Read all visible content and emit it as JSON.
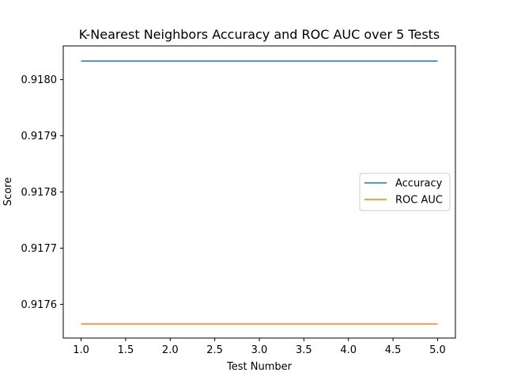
{
  "chart_data": {
    "type": "line",
    "title": "K-Nearest Neighbors Accuracy and ROC AUC over 5 Tests",
    "xlabel": "Test Number",
    "ylabel": "Score",
    "x": [
      1,
      2,
      3,
      4,
      5
    ],
    "xlim": [
      0.8,
      5.2
    ],
    "ylim": [
      0.91754,
      0.91806
    ],
    "xticks": [
      1.0,
      1.5,
      2.0,
      2.5,
      3.0,
      3.5,
      4.0,
      4.5,
      5.0
    ],
    "xtick_labels": [
      "1.0",
      "1.5",
      "2.0",
      "2.5",
      "3.0",
      "3.5",
      "4.0",
      "4.5",
      "5.0"
    ],
    "yticks": [
      0.9176,
      0.9177,
      0.9178,
      0.9179,
      0.918
    ],
    "ytick_labels": [
      "0.9176",
      "0.9177",
      "0.9178",
      "0.9179",
      "0.9180"
    ],
    "grid": false,
    "legend_position": "center-right",
    "series": [
      {
        "name": "Accuracy",
        "color": "#1f77b4",
        "values": [
          0.918033,
          0.918033,
          0.918033,
          0.918033,
          0.918033
        ]
      },
      {
        "name": "ROC AUC",
        "color": "#ff7f0e",
        "values": [
          0.917565,
          0.917565,
          0.917565,
          0.917565,
          0.917565
        ]
      }
    ]
  }
}
